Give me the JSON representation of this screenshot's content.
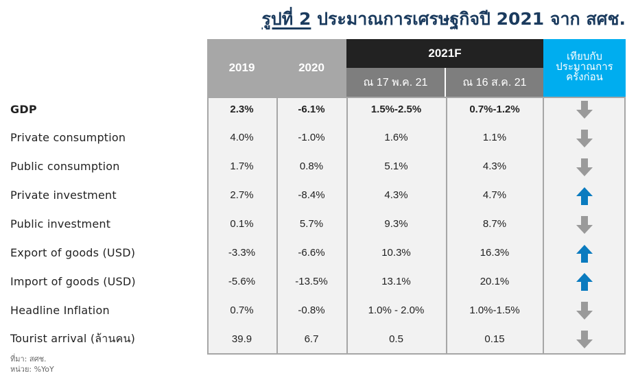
{
  "title": {
    "fig_label": "รูปที่ 2",
    "text": " ประมาณการเศรษฐกิจปี 2021 จาก สศช."
  },
  "header": {
    "col2019": "2019",
    "col2020": "2020",
    "col2021f": "2021F",
    "sub_may": "ณ 17 พ.ค. 21",
    "sub_aug": "ณ 16 ส.ค. 21",
    "compare_line1": "เทียบกับ",
    "compare_line2": "ประมาณการ",
    "compare_line3": "ครั้งก่อน"
  },
  "colors": {
    "up": "#0a7bbf",
    "down": "#9a9a9a",
    "accent": "#00adef"
  },
  "rows": [
    {
      "label": "GDP",
      "v2019": "2.3%",
      "v2020": "-6.1%",
      "may": "1.5%-2.5%",
      "aug": "0.7%-1.2%",
      "trend": "down-arrow-icon",
      "bold": true
    },
    {
      "label": "Private consumption",
      "v2019": "4.0%",
      "v2020": "-1.0%",
      "may": "1.6%",
      "aug": "1.1%",
      "trend": "down-arrow-icon",
      "bold": false
    },
    {
      "label": "Public consumption",
      "v2019": "1.7%",
      "v2020": "0.8%",
      "may": "5.1%",
      "aug": "4.3%",
      "trend": "down-arrow-icon",
      "bold": false
    },
    {
      "label": "Private investment",
      "v2019": "2.7%",
      "v2020": "-8.4%",
      "may": "4.3%",
      "aug": "4.7%",
      "trend": "up-arrow-icon",
      "bold": false
    },
    {
      "label": "Public investment",
      "v2019": "0.1%",
      "v2020": "5.7%",
      "may": "9.3%",
      "aug": "8.7%",
      "trend": "down-arrow-icon",
      "bold": false
    },
    {
      "label": "Export of goods (USD)",
      "v2019": "-3.3%",
      "v2020": "-6.6%",
      "may": "10.3%",
      "aug": "16.3%",
      "trend": "up-arrow-icon",
      "bold": false
    },
    {
      "label": "Import of goods (USD)",
      "v2019": "-5.6%",
      "v2020": "-13.5%",
      "may": "13.1%",
      "aug": "20.1%",
      "trend": "up-arrow-icon",
      "bold": false
    },
    {
      "label": "Headline Inflation",
      "v2019": "0.7%",
      "v2020": "-0.8%",
      "may": "1.0% - 2.0%",
      "aug": "1.0%-1.5%",
      "trend": "down-arrow-icon",
      "bold": false
    },
    {
      "label": "Tourist arrival (ล้านคน)",
      "v2019": "39.9",
      "v2020": "6.7",
      "may": "0.5",
      "aug": "0.15",
      "trend": "down-arrow-icon",
      "bold": false
    }
  ],
  "notes": {
    "source": "ที่มา: สศช.",
    "unit": "หน่วย: %YoY"
  }
}
